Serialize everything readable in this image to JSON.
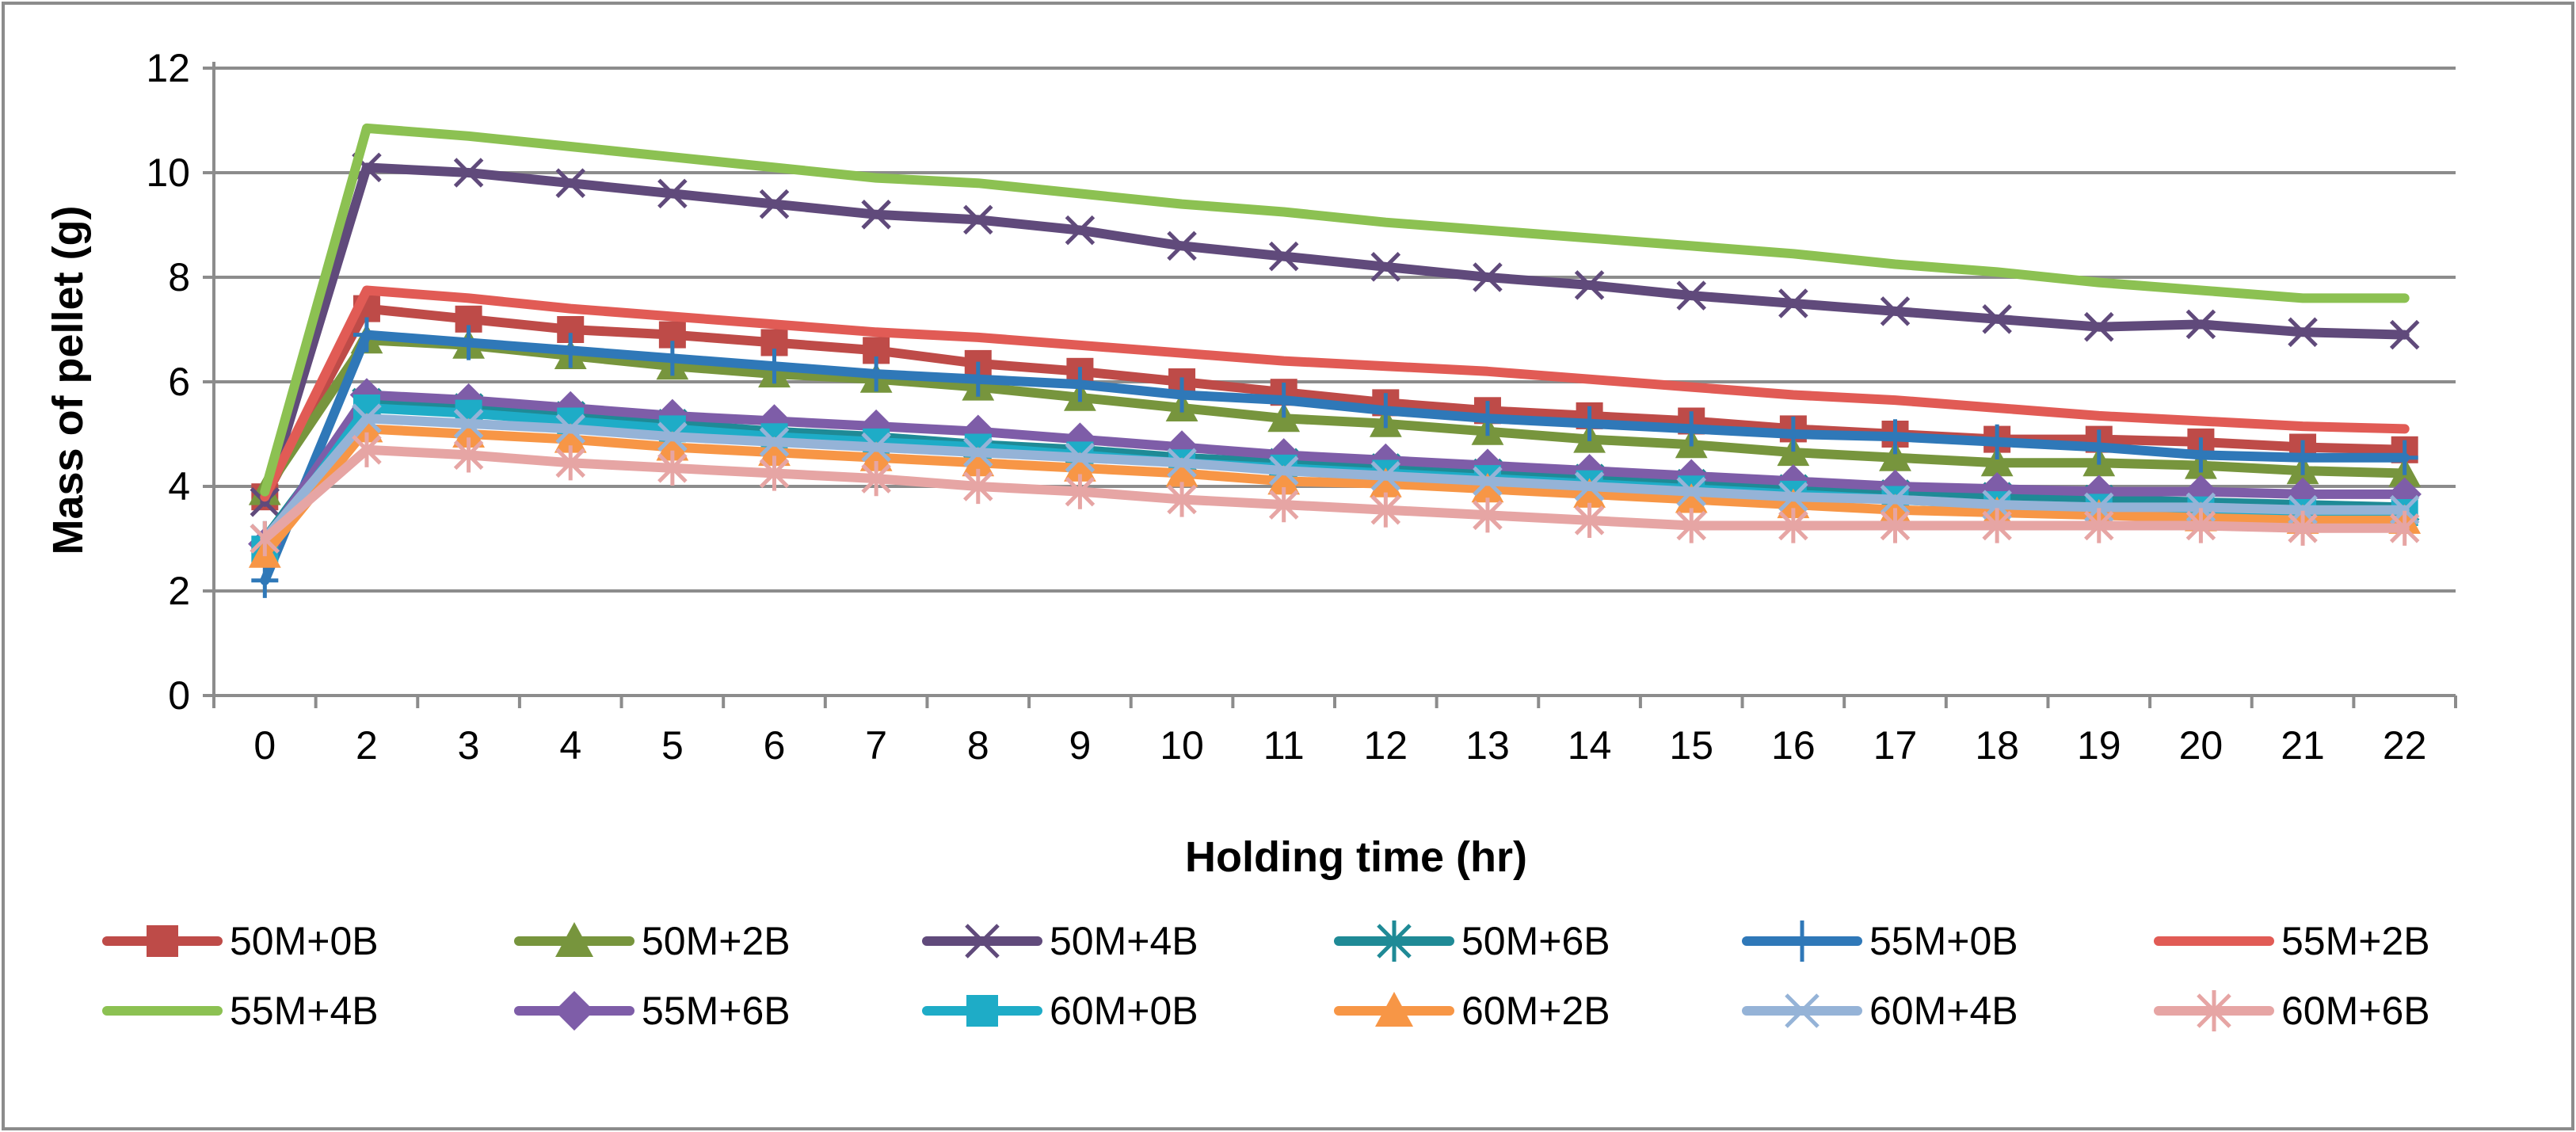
{
  "chart_data": {
    "type": "line",
    "title": "",
    "xlabel": "Holding time (hr)",
    "ylabel": "Mass of pellet (g)",
    "categories": [
      "0",
      "2",
      "3",
      "4",
      "5",
      "6",
      "7",
      "8",
      "9",
      "10",
      "11",
      "12",
      "13",
      "14",
      "15",
      "16",
      "17",
      "18",
      "19",
      "20",
      "21",
      "22"
    ],
    "ylim": [
      0,
      12
    ],
    "yticks": [
      0,
      2,
      4,
      6,
      8,
      10,
      12
    ],
    "grid": true,
    "legend_position": "bottom",
    "series": [
      {
        "name": "50M+0B",
        "color": "#be4b48",
        "marker": "square",
        "values": [
          3.8,
          7.4,
          7.2,
          7.0,
          6.9,
          6.75,
          6.6,
          6.35,
          6.2,
          6.0,
          5.8,
          5.6,
          5.45,
          5.35,
          5.25,
          5.1,
          5.0,
          4.9,
          4.9,
          4.85,
          4.75,
          4.7
        ]
      },
      {
        "name": "50M+2B",
        "color": "#77953d",
        "marker": "triangle",
        "values": [
          3.9,
          6.8,
          6.7,
          6.5,
          6.3,
          6.15,
          6.05,
          5.9,
          5.7,
          5.5,
          5.3,
          5.2,
          5.05,
          4.9,
          4.8,
          4.65,
          4.55,
          4.45,
          4.45,
          4.4,
          4.3,
          4.25
        ]
      },
      {
        "name": "50M+4B",
        "color": "#604a7b",
        "marker": "x",
        "values": [
          3.7,
          10.1,
          10.0,
          9.8,
          9.6,
          9.4,
          9.2,
          9.1,
          8.9,
          8.6,
          8.4,
          8.2,
          8.0,
          7.85,
          7.65,
          7.5,
          7.35,
          7.2,
          7.05,
          7.1,
          6.95,
          6.9
        ]
      },
      {
        "name": "50M+6B",
        "color": "#1f8a96",
        "marker": "asterisk",
        "values": [
          3.0,
          5.6,
          5.5,
          5.35,
          5.2,
          5.05,
          4.95,
          4.8,
          4.7,
          4.55,
          4.45,
          4.35,
          4.25,
          4.15,
          4.05,
          3.95,
          3.85,
          3.8,
          3.75,
          3.7,
          3.65,
          3.6
        ]
      },
      {
        "name": "55M+0B",
        "color": "#2f78b8",
        "marker": "plus",
        "values": [
          2.2,
          6.9,
          6.75,
          6.6,
          6.45,
          6.3,
          6.15,
          6.05,
          5.95,
          5.75,
          5.65,
          5.45,
          5.3,
          5.2,
          5.1,
          5.0,
          4.95,
          4.85,
          4.75,
          4.6,
          4.55,
          4.55
        ]
      },
      {
        "name": "55M+2B",
        "color": "#e15b55",
        "marker": "none",
        "values": [
          3.8,
          7.75,
          7.6,
          7.4,
          7.25,
          7.1,
          6.95,
          6.85,
          6.7,
          6.55,
          6.4,
          6.3,
          6.2,
          6.05,
          5.9,
          5.75,
          5.65,
          5.5,
          5.35,
          5.25,
          5.15,
          5.1
        ]
      },
      {
        "name": "55M+4B",
        "color": "#8cc152",
        "marker": "none",
        "values": [
          3.9,
          10.85,
          10.7,
          10.5,
          10.3,
          10.1,
          9.9,
          9.8,
          9.6,
          9.4,
          9.25,
          9.05,
          8.9,
          8.75,
          8.6,
          8.45,
          8.25,
          8.1,
          7.9,
          7.75,
          7.6,
          7.6
        ]
      },
      {
        "name": "55M+6B",
        "color": "#7e5da8",
        "marker": "diamond",
        "values": [
          2.9,
          5.75,
          5.65,
          5.5,
          5.35,
          5.25,
          5.15,
          5.05,
          4.9,
          4.75,
          4.6,
          4.5,
          4.4,
          4.3,
          4.2,
          4.1,
          4.0,
          3.95,
          3.9,
          3.9,
          3.85,
          3.85
        ]
      },
      {
        "name": "60M+0B",
        "color": "#1eacc7",
        "marker": "square",
        "values": [
          2.8,
          5.5,
          5.4,
          5.25,
          5.1,
          4.95,
          4.85,
          4.75,
          4.6,
          4.45,
          4.35,
          4.25,
          4.15,
          4.05,
          3.95,
          3.85,
          3.75,
          3.65,
          3.6,
          3.55,
          3.5,
          3.5
        ]
      },
      {
        "name": "60M+2B",
        "color": "#f79646",
        "marker": "triangle",
        "values": [
          2.7,
          5.1,
          5.0,
          4.9,
          4.75,
          4.65,
          4.55,
          4.45,
          4.35,
          4.25,
          4.1,
          4.05,
          3.95,
          3.85,
          3.75,
          3.65,
          3.55,
          3.5,
          3.45,
          3.4,
          3.35,
          3.35
        ]
      },
      {
        "name": "60M+4B",
        "color": "#95b3d7",
        "marker": "x",
        "values": [
          3.0,
          5.3,
          5.2,
          5.1,
          4.95,
          4.85,
          4.75,
          4.65,
          4.55,
          4.45,
          4.3,
          4.2,
          4.1,
          4.0,
          3.9,
          3.8,
          3.75,
          3.65,
          3.6,
          3.6,
          3.55,
          3.55
        ]
      },
      {
        "name": "60M+6B",
        "color": "#e6a5a4",
        "marker": "asterisk",
        "values": [
          3.0,
          4.7,
          4.6,
          4.45,
          4.35,
          4.25,
          4.15,
          4.0,
          3.9,
          3.75,
          3.65,
          3.55,
          3.45,
          3.35,
          3.25,
          3.25,
          3.25,
          3.25,
          3.25,
          3.25,
          3.2,
          3.2
        ]
      }
    ]
  }
}
